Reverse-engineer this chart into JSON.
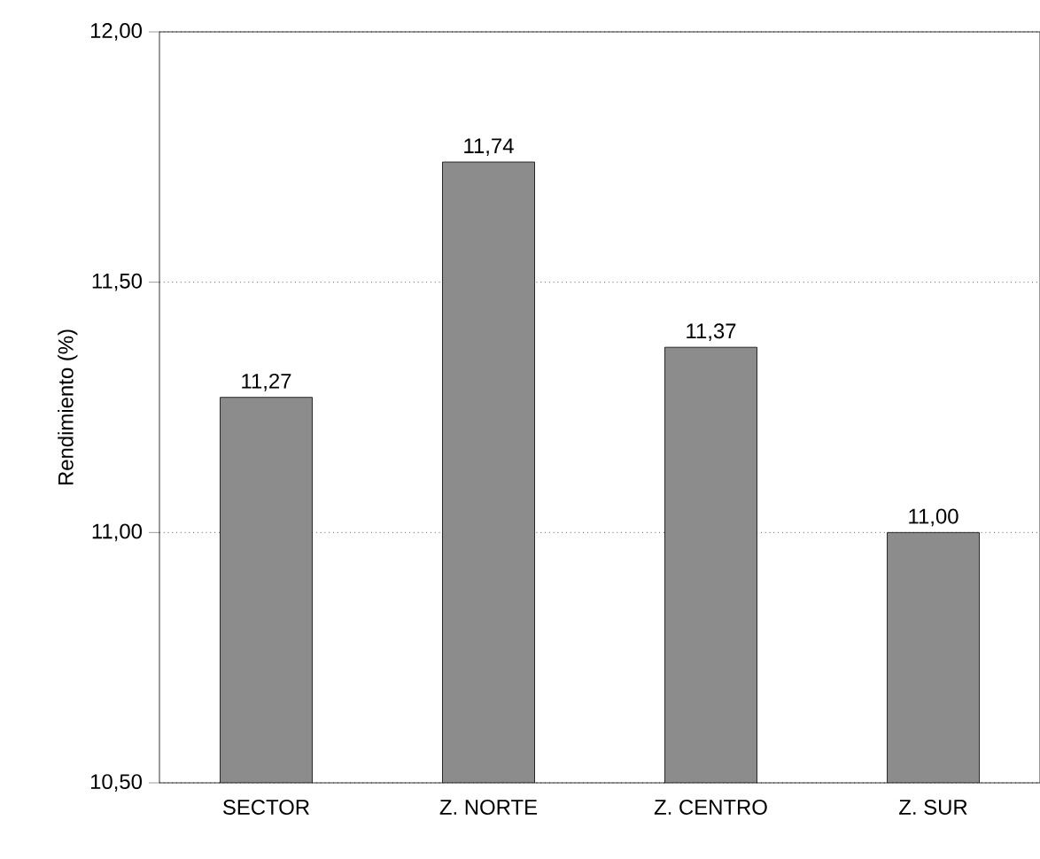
{
  "chart_data": {
    "type": "bar",
    "ylabel": "Rendimiento (%)",
    "categories": [
      "SECTOR",
      "Z. NORTE",
      "Z. CENTRO",
      "Z. SUR"
    ],
    "values": [
      11.27,
      11.74,
      11.37,
      11.0
    ],
    "value_labels": [
      "11,27",
      "11,74",
      "11,37",
      "11,00"
    ],
    "color": "#8c8c8c",
    "ylim": [
      10.5,
      12.0
    ],
    "yticks": [
      {
        "value": 10.5,
        "label": "10,50"
      },
      {
        "value": 11.0,
        "label": "11,00"
      },
      {
        "value": 11.5,
        "label": "11,50"
      },
      {
        "value": 12.0,
        "label": "12,00"
      }
    ],
    "grid": "y"
  }
}
